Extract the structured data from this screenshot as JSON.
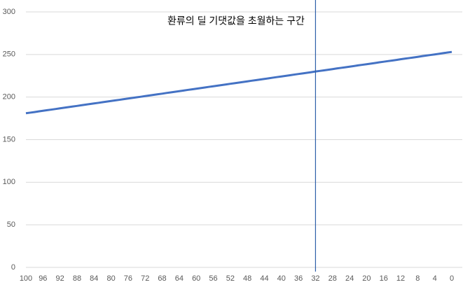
{
  "chart_data": {
    "type": "line",
    "annotation": "환류의 딜 기댓값을 초월하는 구간",
    "categories": [
      100,
      null,
      null,
      null,
      96,
      null,
      null,
      null,
      92,
      null,
      null,
      null,
      88,
      null,
      null,
      null,
      84,
      null,
      null,
      null,
      80,
      null,
      null,
      null,
      76,
      null,
      null,
      null,
      72,
      null,
      null,
      null,
      68,
      null,
      null,
      null,
      64,
      null,
      null,
      null,
      60,
      null,
      null,
      null,
      56,
      null,
      null,
      null,
      52,
      null,
      null,
      null,
      48,
      null,
      null,
      null,
      44,
      null,
      null,
      null,
      40,
      null,
      null,
      null,
      36,
      null,
      null,
      null,
      32,
      null,
      null,
      null,
      28,
      null,
      null,
      null,
      24,
      null,
      null,
      null,
      20,
      null,
      null,
      null,
      16,
      null,
      null,
      null,
      12,
      null,
      null,
      null,
      8,
      null,
      null,
      null,
      4,
      null,
      null,
      null,
      0
    ],
    "series": [
      {
        "color": "#4472c4",
        "values": [
          181,
          181.7,
          182.4,
          183.2,
          183.9,
          184.6,
          185.3,
          186,
          186.8,
          187.5,
          188.2,
          188.9,
          189.6,
          190.4,
          191.1,
          191.8,
          192.5,
          193.2,
          194,
          194.7,
          195.4,
          196.1,
          196.8,
          197.6,
          198.3,
          199,
          199.7,
          200.4,
          201.2,
          201.9,
          202.6,
          203.3,
          204,
          204.8,
          205.5,
          206.2,
          206.9,
          207.6,
          208.4,
          209.1,
          209.8,
          210.5,
          211.2,
          212,
          212.7,
          213.4,
          214.1,
          214.8,
          215.6,
          216.3,
          217,
          217.7,
          218.4,
          219.2,
          219.9,
          220.6,
          221.3,
          222,
          222.8,
          223.5,
          224.2,
          224.9,
          225.6,
          226.4,
          227.1,
          227.8,
          228.5,
          229.2,
          230,
          230.7,
          231.4,
          232.1,
          232.8,
          233.6,
          234.3,
          235,
          235.7,
          236.4,
          237.2,
          237.9,
          238.6,
          239.3,
          240,
          240.8,
          241.5,
          242.2,
          242.9,
          243.6,
          244.4,
          245.1,
          245.8,
          246.5,
          247.2,
          248,
          248.7,
          249.4,
          250.1,
          250.8,
          251.6,
          252.3,
          253
        ]
      }
    ],
    "vline": 32,
    "vline_color": "#2e5fa8",
    "ylim": [
      0,
      300
    ],
    "yticks": [
      0,
      50,
      100,
      150,
      200,
      250,
      300
    ],
    "grid": true
  }
}
